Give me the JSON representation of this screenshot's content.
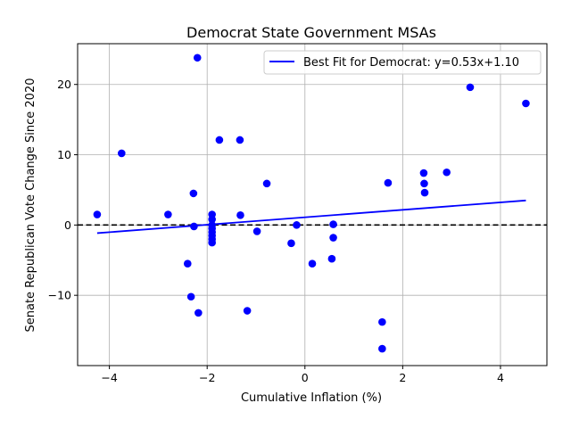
{
  "chart_data": {
    "type": "scatter",
    "title": "Democrat State Government MSAs",
    "xlabel": "Cumulative Inflation (%)",
    "ylabel": "Senate Republican Vote Change Since 2020",
    "xlim": [
      -4.65,
      4.95
    ],
    "ylim": [
      -20.0,
      25.8
    ],
    "xticks": [
      -4,
      -2,
      0,
      2,
      4
    ],
    "xtick_labels": [
      "−4",
      "−2",
      "0",
      "2",
      "4"
    ],
    "yticks": [
      -10,
      0,
      10,
      20
    ],
    "ytick_labels": [
      "−10",
      "0",
      "10",
      "20"
    ],
    "grid": true,
    "reference_line": {
      "y": 0,
      "style": "dashed",
      "color": "#000000"
    },
    "legend": {
      "position": "top-right",
      "entries": [
        "Best Fit for Democrat: y=0.53x+1.10"
      ]
    },
    "series": [
      {
        "name": "MSAs",
        "kind": "scatter",
        "color": "#0000ff",
        "points": [
          [
            -4.25,
            1.5
          ],
          [
            -3.75,
            10.2
          ],
          [
            -2.8,
            1.5
          ],
          [
            -2.4,
            -5.5
          ],
          [
            -2.33,
            -10.2
          ],
          [
            -2.28,
            4.5
          ],
          [
            -2.27,
            -0.2
          ],
          [
            -2.2,
            23.8
          ],
          [
            -2.18,
            -12.5
          ],
          [
            -1.9,
            1.5
          ],
          [
            -1.9,
            0.8
          ],
          [
            -1.9,
            0.0
          ],
          [
            -1.9,
            -0.5
          ],
          [
            -1.9,
            -1.0
          ],
          [
            -1.9,
            -1.5
          ],
          [
            -1.9,
            -2.0
          ],
          [
            -1.9,
            -2.5
          ],
          [
            -1.75,
            12.1
          ],
          [
            -1.33,
            12.1
          ],
          [
            -1.32,
            1.4
          ],
          [
            -1.18,
            -12.2
          ],
          [
            -0.98,
            -0.9
          ],
          [
            -0.78,
            5.9
          ],
          [
            -0.28,
            -2.6
          ],
          [
            -0.17,
            0.0
          ],
          [
            0.15,
            -5.5
          ],
          [
            0.55,
            -4.8
          ],
          [
            0.58,
            0.1
          ],
          [
            0.58,
            -1.8
          ],
          [
            1.58,
            -13.8
          ],
          [
            1.58,
            -17.6
          ],
          [
            1.7,
            6.0
          ],
          [
            2.43,
            7.4
          ],
          [
            2.44,
            5.9
          ],
          [
            2.45,
            4.6
          ],
          [
            2.9,
            7.5
          ],
          [
            3.38,
            19.6
          ],
          [
            4.52,
            17.3
          ]
        ]
      },
      {
        "name": "Best Fit for Democrat: y=0.53x+1.10",
        "kind": "line",
        "color": "#0000ff",
        "slope": 0.53,
        "intercept": 1.1,
        "x_range": [
          -4.25,
          4.52
        ]
      }
    ]
  }
}
